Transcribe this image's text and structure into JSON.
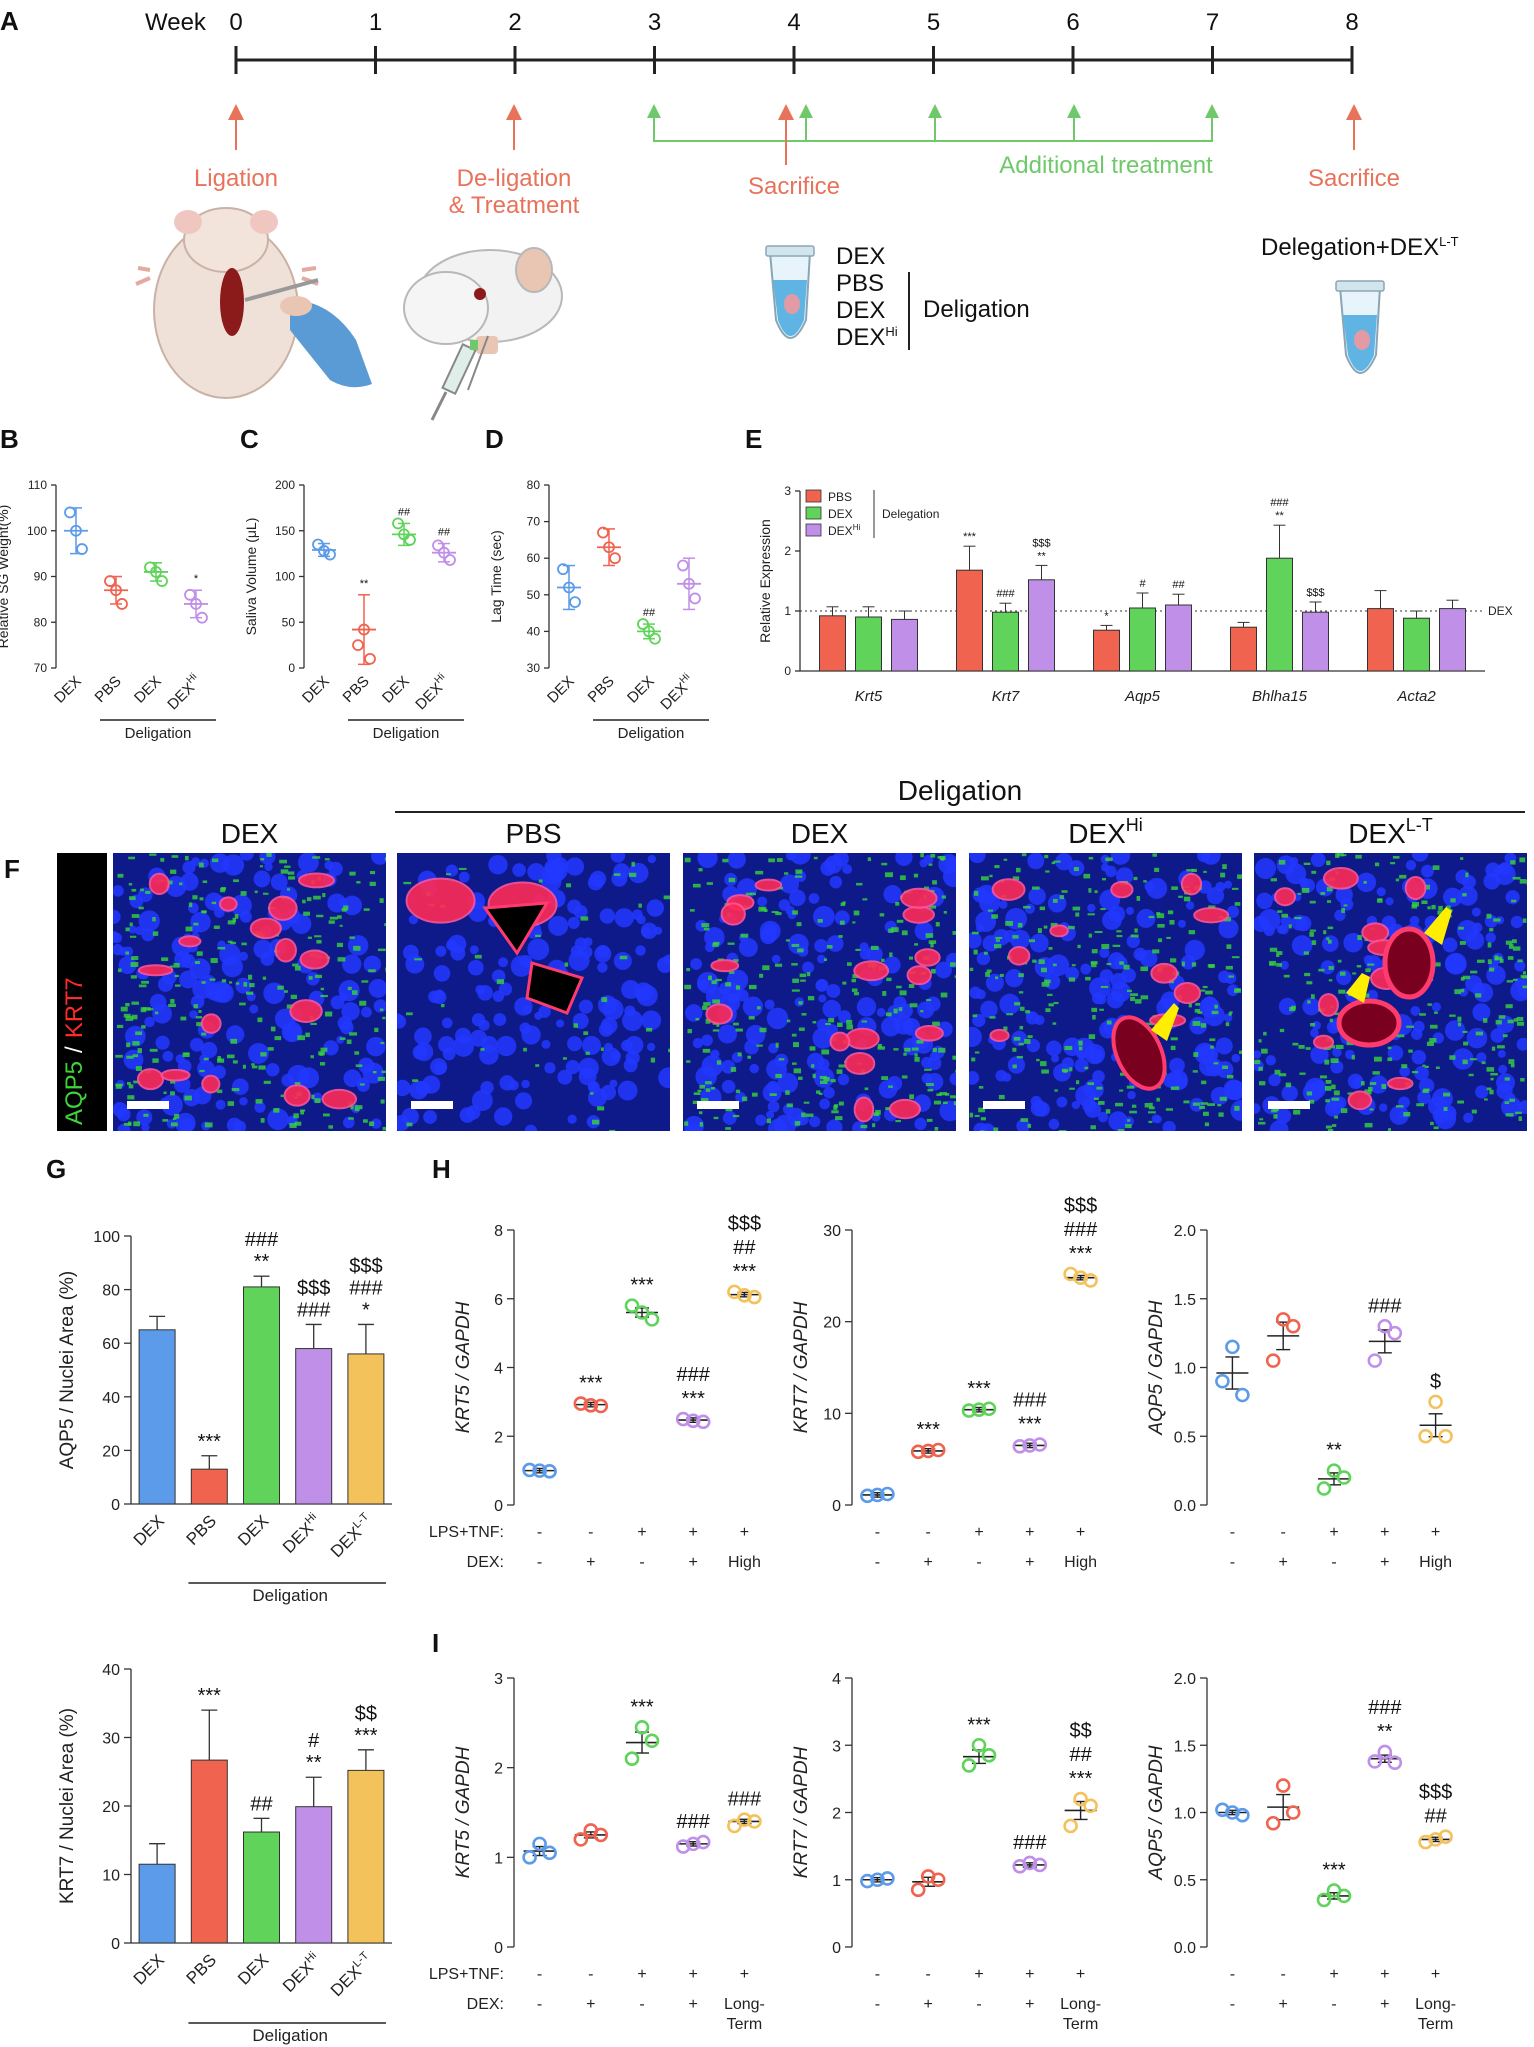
{
  "panels": {
    "A": "A",
    "B": "B",
    "C": "C",
    "D": "D",
    "E": "E",
    "F": "F",
    "G": "G",
    "H": "H",
    "I": "I"
  },
  "colors": {
    "dex_ctrl": "#5b9bea",
    "pbs": "#f0634f",
    "dex": "#5fd35a",
    "dexhi": "#c08fe8",
    "dexlt": "#f4c25b",
    "timeline_salmon": "#e8725a",
    "timeline_green": "#6fc96a"
  },
  "timeline": {
    "week_label": "Week",
    "weeks": [
      "0",
      "1",
      "2",
      "3",
      "4",
      "5",
      "6",
      "7",
      "8"
    ],
    "ligation": "Ligation",
    "deligation_1": "De-ligation",
    "deligation_2": "& Treatment",
    "sacrifice_1": "Sacrifice",
    "additional": "Additional  treatment",
    "sacrifice_2": "Sacrifice",
    "tube_list": [
      "DEX",
      "PBS",
      "DEX",
      "DEX"
    ],
    "tube_hi_sup": "Hi",
    "tube_group": "Deligation",
    "right_title": "Delegation+DEX",
    "right_sup": "L-T"
  },
  "groups_short": {
    "dex": "DEX",
    "pbs": "PBS",
    "dexhi": "DEX",
    "hi": "Hi",
    "lt": "L-T",
    "deligation": "Deligation"
  },
  "panelB": {
    "ylabel": "Relative SG Weight(%)",
    "ticks": [
      "70",
      "80",
      "90",
      "100",
      "110"
    ],
    "sig": [
      "",
      "",
      "",
      "*"
    ]
  },
  "panelC": {
    "ylabel": "Saliva Volume (μL)",
    "ticks": [
      "0",
      "50",
      "100",
      "150",
      "200"
    ],
    "sig": [
      "",
      "**",
      "##",
      "##"
    ]
  },
  "panelD": {
    "ylabel": "Lag Time (sec)",
    "ticks": [
      "30",
      "40",
      "50",
      "60",
      "70",
      "80"
    ],
    "sig": [
      "",
      "",
      "##",
      ""
    ]
  },
  "panelE": {
    "ylabel": "Relative Expression",
    "ticks": [
      "0",
      "1",
      "2",
      "3"
    ],
    "legend": [
      "PBS",
      "DEX",
      "DEX"
    ],
    "legend_hi": "Hi",
    "legend_group": "Delegation",
    "genes": [
      "Krt5",
      "Krt7",
      "Aqp5",
      "Bhlha15",
      "Acta2"
    ],
    "ref": "DEX",
    "sig": [
      [
        "",
        "",
        ""
      ],
      [
        "***",
        "###",
        "$$$ **"
      ],
      [
        "*",
        "#",
        "##"
      ],
      [
        "",
        "### **",
        "$$$"
      ],
      [
        "",
        "",
        ""
      ]
    ]
  },
  "panelF": {
    "header": "Deligation",
    "titles": [
      "DEX",
      "PBS",
      "DEX",
      "DEX",
      "DEX"
    ],
    "sups": [
      "",
      "",
      "",
      "Hi",
      "L-T"
    ],
    "stain_green": "AQP5",
    "stain_sep": "/",
    "stain_red": "KRT7"
  },
  "panelG": {
    "top": {
      "ylabel": "AQP5  / Nuclei Area (%)",
      "ticks": [
        "0",
        "20",
        "40",
        "60",
        "80",
        "100"
      ],
      "sig": [
        [
          ""
        ],
        [
          "***"
        ],
        [
          "###",
          "**"
        ],
        [
          "$$$",
          "###"
        ],
        [
          "$$$",
          "###",
          "*"
        ]
      ]
    },
    "bottom": {
      "ylabel": "KRT7  / Nuclei Area (%)",
      "ticks": [
        "0",
        "10",
        "20",
        "30",
        "40"
      ],
      "sig": [
        [
          ""
        ],
        [
          "***"
        ],
        [
          "##"
        ],
        [
          "#",
          "**"
        ],
        [
          "$$",
          "***"
        ]
      ]
    }
  },
  "treat": {
    "row1": "LPS+TNF:",
    "row2": "DEX:",
    "lps": [
      "-",
      "-",
      "+",
      "+",
      "+"
    ],
    "dexH": [
      "-",
      "+",
      "-",
      "+",
      "High"
    ],
    "dexI": [
      "-",
      "+",
      "-",
      "+",
      "Long-"
    ],
    "term": "Term"
  },
  "panelH": [
    {
      "ylabel": "KRT5 / GAPDH",
      "ticks": [
        "0",
        "2",
        "4",
        "6",
        "8"
      ],
      "sig": [
        [
          ""
        ],
        [
          "***"
        ],
        [
          "***"
        ],
        [
          "###",
          "***"
        ],
        [
          "$$$",
          "##",
          "***"
        ]
      ]
    },
    {
      "ylabel": "KRT7 / GAPDH",
      "ticks": [
        "0",
        "10",
        "20",
        "30"
      ],
      "sig": [
        [
          ""
        ],
        [
          "***"
        ],
        [
          "***"
        ],
        [
          "###",
          "***"
        ],
        [
          "$$$",
          "###",
          "***"
        ]
      ]
    },
    {
      "ylabel": "AQP5 / GAPDH",
      "ticks": [
        "0.0",
        "0.5",
        "1.0",
        "1.5",
        "2.0"
      ],
      "sig": [
        [
          ""
        ],
        [
          ""
        ],
        [
          "**"
        ],
        [
          "###"
        ],
        [
          "$"
        ]
      ]
    }
  ],
  "panelI": [
    {
      "ylabel": "KRT5 / GAPDH",
      "ticks": [
        "0",
        "1",
        "2",
        "3"
      ],
      "sig": [
        [
          ""
        ],
        [
          ""
        ],
        [
          "***"
        ],
        [
          "###"
        ],
        [
          "###"
        ]
      ]
    },
    {
      "ylabel": "KRT7 / GAPDH",
      "ticks": [
        "0",
        "1",
        "2",
        "3",
        "4"
      ],
      "sig": [
        [
          ""
        ],
        [
          ""
        ],
        [
          "***"
        ],
        [
          "###"
        ],
        [
          "$$",
          "##",
          "***"
        ]
      ]
    },
    {
      "ylabel": "AQP5 / GAPDH",
      "ticks": [
        "0.0",
        "0.5",
        "1.0",
        "1.5",
        "2.0"
      ],
      "sig": [
        [
          ""
        ],
        [
          ""
        ],
        [
          "***"
        ],
        [
          "###",
          "**"
        ],
        [
          "$$$",
          "##"
        ]
      ]
    }
  ],
  "chart_data": [
    {
      "type": "scatter",
      "id": "B",
      "categories": [
        "DEX",
        "PBS",
        "DEX",
        "DEXHi"
      ],
      "ylabel": "Relative SG Weight(%)",
      "ylim": [
        70,
        110
      ],
      "series": [
        {
          "values": [
            [
              100,
              104,
              96
            ],
            [
              87,
              89,
              84
            ],
            [
              91,
              92,
              89
            ],
            [
              84,
              86,
              81
            ]
          ],
          "mean": [
            100,
            87,
            91,
            84
          ],
          "sd": [
            5,
            3,
            2,
            3
          ]
        }
      ]
    },
    {
      "type": "scatter",
      "id": "C",
      "categories": [
        "DEX",
        "PBS",
        "DEX",
        "DEXHi"
      ],
      "ylabel": "Saliva Volume (μL)",
      "ylim": [
        0,
        200
      ],
      "series": [
        {
          "values": [
            [
              128,
              135,
              124
            ],
            [
              42,
              25,
              10
            ],
            [
              146,
              158,
              140
            ],
            [
              126,
              134,
              118
            ]
          ],
          "mean": [
            129,
            42,
            146,
            126
          ],
          "sd": [
            7,
            38,
            12,
            10
          ]
        }
      ]
    },
    {
      "type": "scatter",
      "id": "D",
      "categories": [
        "DEX",
        "PBS",
        "DEX",
        "DEXHi"
      ],
      "ylabel": "Lag Time (sec)",
      "ylim": [
        30,
        80
      ],
      "series": [
        {
          "values": [
            [
              52,
              57,
              48
            ],
            [
              63,
              67,
              60
            ],
            [
              40,
              42,
              38
            ],
            [
              53,
              58,
              49
            ]
          ],
          "mean": [
            52,
            63,
            40,
            53
          ],
          "sd": [
            6,
            5,
            2,
            7
          ]
        }
      ]
    },
    {
      "type": "bar",
      "id": "E",
      "categories": [
        "Krt5",
        "Krt7",
        "Aqp5",
        "Bhlha15",
        "Acta2"
      ],
      "ylabel": "Relative Expression",
      "ylim": [
        0,
        3
      ],
      "series": [
        {
          "name": "PBS",
          "values": [
            0.92,
            1.68,
            0.68,
            0.73,
            1.04
          ],
          "err": [
            0.15,
            0.4,
            0.08,
            0.08,
            0.3
          ]
        },
        {
          "name": "DEX",
          "values": [
            0.9,
            0.98,
            1.05,
            1.88,
            0.88
          ],
          "err": [
            0.17,
            0.15,
            0.25,
            0.55,
            0.12
          ]
        },
        {
          "name": "DEXHi",
          "values": [
            0.86,
            1.52,
            1.1,
            0.98,
            1.04
          ],
          "err": [
            0.14,
            0.24,
            0.18,
            0.17,
            0.14
          ]
        }
      ],
      "reference_line": 1
    },
    {
      "type": "bar",
      "id": "G-top",
      "categories": [
        "DEX",
        "PBS",
        "DEX",
        "DEXHi",
        "DEXL-T"
      ],
      "ylabel": "AQP5  / Nuclei Area (%)",
      "ylim": [
        0,
        100
      ],
      "values": [
        65,
        13,
        81,
        58,
        56
      ],
      "err": [
        5,
        5,
        4,
        9,
        11
      ]
    },
    {
      "type": "bar",
      "id": "G-bottom",
      "categories": [
        "DEX",
        "PBS",
        "DEX",
        "DEXHi",
        "DEXL-T"
      ],
      "ylabel": "KRT7  / Nuclei Area (%)",
      "ylim": [
        0,
        40
      ],
      "values": [
        11.5,
        26.7,
        16.2,
        19.9,
        25.2
      ],
      "err": [
        3,
        7.3,
        2,
        4.3,
        3
      ]
    },
    {
      "type": "scatter",
      "id": "H-KRT5",
      "ylabel": "KRT5 / GAPDH",
      "ylim": [
        0,
        8
      ],
      "values": [
        [
          1.0,
          1.02,
          0.98
        ],
        [
          2.9,
          2.95,
          2.88
        ],
        [
          5.6,
          5.8,
          5.4
        ],
        [
          2.45,
          2.5,
          2.42
        ],
        [
          6.1,
          6.2,
          6.05
        ]
      ],
      "mean": [
        1.0,
        2.92,
        5.6,
        2.47,
        6.12
      ]
    },
    {
      "type": "scatter",
      "id": "H-KRT7",
      "ylabel": "KRT7 / GAPDH",
      "ylim": [
        0,
        30
      ],
      "values": [
        [
          1.1,
          1.0,
          1.2
        ],
        [
          5.9,
          5.8,
          6.0
        ],
        [
          10.4,
          10.3,
          10.5
        ],
        [
          6.5,
          6.4,
          6.6
        ],
        [
          24.8,
          25.2,
          24.5
        ]
      ],
      "mean": [
        1.1,
        5.9,
        10.4,
        6.5,
        24.8
      ]
    },
    {
      "type": "scatter",
      "id": "H-AQP5",
      "ylabel": "AQP5 / GAPDH",
      "ylim": [
        0,
        2
      ],
      "values": [
        [
          1.15,
          0.9,
          0.8
        ],
        [
          1.35,
          1.05,
          1.3
        ],
        [
          0.25,
          0.12,
          0.2
        ],
        [
          1.3,
          1.05,
          1.25
        ],
        [
          0.75,
          0.5,
          0.5
        ]
      ],
      "mean": [
        0.96,
        1.23,
        0.19,
        1.19,
        0.58
      ]
    },
    {
      "type": "scatter",
      "id": "I-KRT5",
      "ylabel": "KRT5 / GAPDH",
      "ylim": [
        0,
        3
      ],
      "values": [
        [
          1.15,
          1.0,
          1.05
        ],
        [
          1.3,
          1.2,
          1.25
        ],
        [
          2.45,
          2.1,
          2.3
        ],
        [
          1.15,
          1.12,
          1.17
        ],
        [
          1.42,
          1.35,
          1.4
        ]
      ],
      "mean": [
        1.07,
        1.25,
        2.28,
        1.15,
        1.4
      ]
    },
    {
      "type": "scatter",
      "id": "I-KRT7",
      "ylabel": "KRT7 / GAPDH",
      "ylim": [
        0,
        4
      ],
      "values": [
        [
          1.0,
          0.98,
          1.02
        ],
        [
          1.05,
          0.85,
          1.0
        ],
        [
          3.0,
          2.7,
          2.85
        ],
        [
          1.25,
          1.2,
          1.22
        ],
        [
          2.2,
          1.8,
          2.1
        ]
      ],
      "mean": [
        1.0,
        0.97,
        2.83,
        1.22,
        2.03
      ]
    },
    {
      "type": "scatter",
      "id": "I-AQP5",
      "ylabel": "AQP5 / GAPDH",
      "ylim": [
        0,
        2
      ],
      "values": [
        [
          1.0,
          1.02,
          0.98
        ],
        [
          1.2,
          0.92,
          1.0
        ],
        [
          0.42,
          0.35,
          0.38
        ],
        [
          1.45,
          1.38,
          1.37
        ],
        [
          0.8,
          0.78,
          0.82
        ]
      ],
      "mean": [
        1.0,
        1.04,
        0.38,
        1.4,
        0.8
      ]
    }
  ]
}
